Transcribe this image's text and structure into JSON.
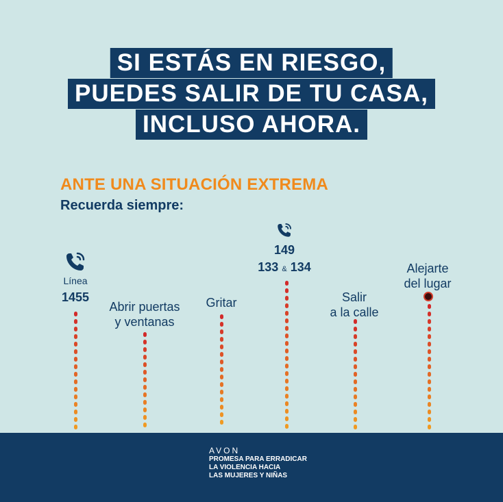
{
  "headline": {
    "line1": "SI ESTÁS EN RIESGO,",
    "line2": "PUEDES SALIR DE TU CASA,",
    "line3": "INCLUSO AHORA."
  },
  "subhead": "ANTE UNA SITUACIÓN EXTREMA",
  "subtext": "Recuerda siempre:",
  "steps": {
    "linea": {
      "label": "Línea",
      "number": "1455",
      "icon": "phone-icon"
    },
    "abrir": {
      "line1": "Abrir puertas",
      "line2": "y ventanas"
    },
    "gritar": {
      "label": "Gritar"
    },
    "emergencia": {
      "number1": "149",
      "number2a": "133",
      "amp": "&",
      "number2b": "134",
      "icon": "phone-icon"
    },
    "salir": {
      "line1": "Salir",
      "line2": "a la calle"
    },
    "alejarte": {
      "line1": "Alejarte",
      "line2": "del lugar"
    }
  },
  "footer": {
    "brand": "AVON",
    "promise_line1": "PROMESA PARA ERRADICAR",
    "promise_line2": "LA VIOLENCIA HACIA",
    "promise_line3": "LAS MUJERES Y NIÑAS"
  },
  "colors": {
    "navy": "#123b63",
    "orange": "#f08a1c",
    "red": "#d23b2a",
    "background": "#cfe6e6"
  }
}
